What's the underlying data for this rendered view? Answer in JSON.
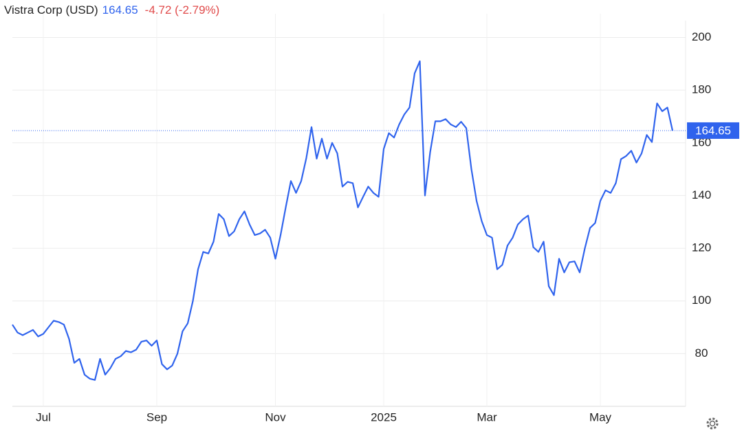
{
  "chart_data": {
    "type": "line",
    "title": "Vistra Corp (USD)",
    "change": "-4.72 (-2.79%)",
    "categories": [
      null,
      null,
      null,
      null,
      null,
      null,
      "Jul",
      null,
      null,
      null,
      null,
      null,
      null,
      null,
      null,
      null,
      null,
      null,
      null,
      null,
      null,
      null,
      null,
      null,
      null,
      null,
      null,
      null,
      "Sep",
      null,
      null,
      null,
      null,
      null,
      null,
      null,
      null,
      null,
      null,
      null,
      null,
      null,
      null,
      null,
      null,
      null,
      null,
      null,
      null,
      null,
      null,
      "Nov",
      null,
      null,
      null,
      null,
      null,
      null,
      null,
      null,
      null,
      null,
      null,
      null,
      null,
      null,
      null,
      null,
      null,
      null,
      null,
      null,
      "2025",
      null,
      null,
      null,
      null,
      null,
      null,
      null,
      null,
      null,
      null,
      null,
      null,
      null,
      null,
      null,
      null,
      null,
      null,
      null,
      "Mar",
      null,
      null,
      null,
      null,
      null,
      null,
      null,
      null,
      null,
      null,
      null,
      null,
      null,
      null,
      null,
      null,
      null,
      null,
      null,
      null,
      null,
      "May",
      null,
      null,
      null,
      null,
      null,
      null,
      null,
      null,
      null,
      null,
      null,
      null,
      null,
      null
    ],
    "series": [
      {
        "name": "Vistra Corp",
        "color": "#2f63ed",
        "values": [
          91,
          88,
          87,
          88,
          89,
          86.5,
          87.5,
          90,
          92.5,
          92,
          91,
          85.5,
          76.5,
          78,
          72,
          70.5,
          70,
          78,
          72,
          74.5,
          78,
          79,
          81,
          80.5,
          81.5,
          84.5,
          85,
          83,
          85,
          76,
          74,
          75.5,
          80,
          88.5,
          91.5,
          100,
          112,
          118.6,
          118,
          122.5,
          133,
          131,
          124.6,
          126.4,
          131,
          134,
          129,
          125,
          125.6,
          127,
          124,
          116,
          125,
          135.5,
          145.5,
          141,
          145.5,
          154.3,
          166,
          154,
          161.6,
          154,
          160,
          156,
          143.4,
          145.2,
          144.7,
          135.5,
          139.5,
          143.4,
          141,
          139.5,
          157.7,
          163.7,
          162,
          167,
          170.8,
          173.4,
          186.4,
          191,
          140,
          156.4,
          168.2,
          168.2,
          169,
          167,
          166,
          168,
          165.6,
          150,
          138,
          130.3,
          125,
          124,
          112,
          113.7,
          121,
          124,
          129,
          131,
          132.4,
          120.4,
          118.6,
          122.5,
          105.6,
          102.2,
          116,
          110.8,
          114.7,
          115,
          110.8,
          120,
          127.7,
          129.6,
          138,
          142,
          141,
          144.7,
          153.8,
          155,
          157,
          152.5,
          156,
          163,
          160.3,
          175,
          172,
          173.4,
          164.65
        ]
      }
    ],
    "ylim": [
      60,
      209
    ],
    "yticks": [
      80,
      100,
      120,
      140,
      160,
      180,
      200
    ],
    "grid": true
  }
}
